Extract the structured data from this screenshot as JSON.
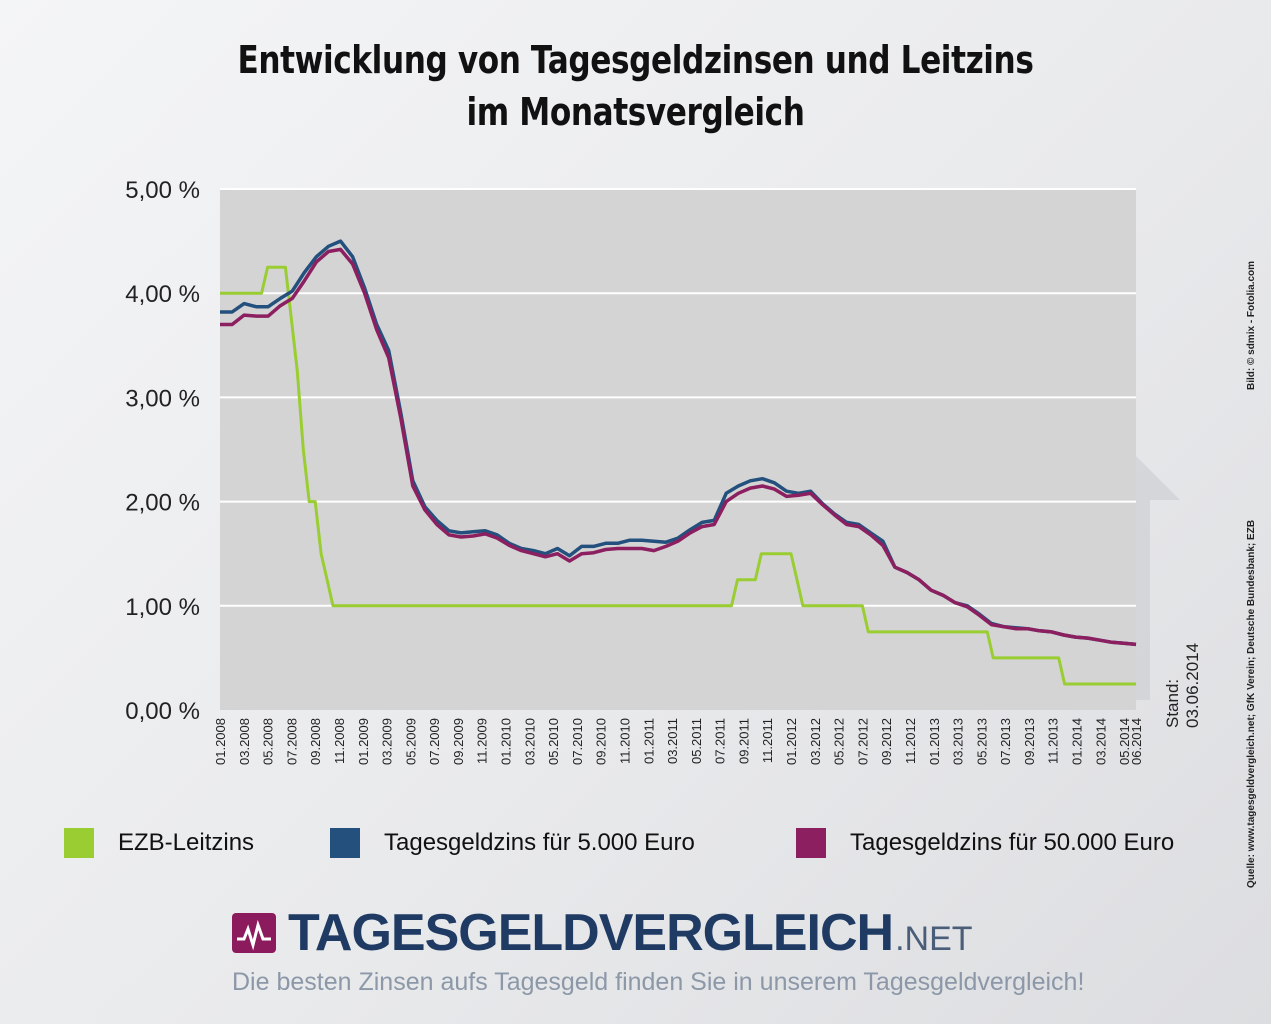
{
  "title_line1": "Entwicklung von Tagesgeldzinsen und Leitzins",
  "title_line2": "im Monatsvergleich",
  "stand": "Stand: 03.06.2014",
  "credit_image": "Bild: © sdmix - Fotolia.com",
  "credit_source": "Quelle: www.tagesgeldvergleich.net; GfK Verein; Deutsche Bundesbank; EZB",
  "logo": {
    "main": "TAGESGELDVERGLEICH",
    "ext": ".NET",
    "tagline": "Die besten Zinsen aufs Tagesgeld finden Sie in unserem Tagesgeldvergleich!"
  },
  "colors": {
    "ezb": "#9acd32",
    "t5000": "#24507e",
    "t50000": "#8c1f60",
    "plot_bg": "#d4d4d4"
  },
  "legend": [
    {
      "label": "EZB-Leitzins",
      "color": "#9acd32"
    },
    {
      "label": "Tagesgeldzins für 5.000 Euro",
      "color": "#24507e"
    },
    {
      "label": "Tagesgeldzins für 50.000 Euro",
      "color": "#8c1f60"
    }
  ],
  "chart_data": {
    "type": "line",
    "x_start": "01.2008",
    "x_end": "06.2014",
    "x_ticks": [
      "01.2008",
      "03.2008",
      "05.2008",
      "07.2008",
      "09.2008",
      "11.2008",
      "01.2009",
      "03.2009",
      "05.2009",
      "07.2009",
      "09.2009",
      "11.2009",
      "01.2010",
      "03.2010",
      "05.2010",
      "07.2010",
      "09.2010",
      "11.2010",
      "01.2011",
      "03.2011",
      "05.2011",
      "07.2011",
      "09.2011",
      "11.2011",
      "01.2012",
      "03.2012",
      "05.2012",
      "07.2012",
      "09.2012",
      "11.2012",
      "01.2013",
      "03.2013",
      "05.2013",
      "07.2013",
      "09.2013",
      "11.2013",
      "01.2014",
      "03.2014",
      "05.2014",
      "06.2014"
    ],
    "y_ticks": [
      "0,00 %",
      "1,00 %",
      "2,00 %",
      "3,00 %",
      "4,00 %",
      "5,00 %"
    ],
    "ylim": [
      0,
      5
    ],
    "grid": "horizontal",
    "legend_position": "bottom",
    "series": [
      {
        "name": "EZB-Leitzins",
        "color": "#9acd32",
        "values": [
          4,
          4,
          4,
          4,
          4,
          4,
          4,
          4,
          4.25,
          4.25,
          4.25,
          4.25,
          3.75,
          3.25,
          2.5,
          2,
          2,
          1.5,
          1.25,
          1,
          1,
          1,
          1,
          1,
          1,
          1,
          1,
          1,
          1,
          1,
          1,
          1,
          1,
          1,
          1,
          1,
          1,
          1,
          1,
          1,
          1,
          1,
          1,
          1,
          1,
          1,
          1,
          1,
          1,
          1,
          1,
          1,
          1,
          1,
          1,
          1,
          1,
          1,
          1,
          1,
          1,
          1,
          1,
          1,
          1,
          1,
          1,
          1,
          1,
          1,
          1,
          1,
          1,
          1,
          1,
          1,
          1,
          1,
          1,
          1,
          1,
          1,
          1,
          1,
          1,
          1,
          1,
          1.25,
          1.25,
          1.25,
          1.25,
          1.5,
          1.5,
          1.5,
          1.5,
          1.5,
          1.5,
          1.25,
          1,
          1,
          1,
          1,
          1,
          1,
          1,
          1,
          1,
          1,
          1,
          0.75,
          0.75,
          0.75,
          0.75,
          0.75,
          0.75,
          0.75,
          0.75,
          0.75,
          0.75,
          0.75,
          0.75,
          0.75,
          0.75,
          0.75,
          0.75,
          0.75,
          0.75,
          0.75,
          0.75,
          0.75,
          0.5,
          0.5,
          0.5,
          0.5,
          0.5,
          0.5,
          0.5,
          0.5,
          0.5,
          0.5,
          0.5,
          0.5,
          0.25,
          0.25,
          0.25,
          0.25,
          0.25,
          0.25,
          0.25,
          0.25,
          0.25,
          0.25,
          0.25,
          0.25,
          0.25
        ]
      },
      {
        "name": "Tagesgeldzins für 5.000 Euro",
        "color": "#24507e",
        "values": [
          3.82,
          3.82,
          3.9,
          3.87,
          3.87,
          3.95,
          4.02,
          4.2,
          4.35,
          4.45,
          4.5,
          4.35,
          4.05,
          3.7,
          3.45,
          2.85,
          2.2,
          1.95,
          1.82,
          1.72,
          1.7,
          1.71,
          1.72,
          1.68,
          1.6,
          1.55,
          1.53,
          1.5,
          1.55,
          1.48,
          1.57,
          1.57,
          1.6,
          1.6,
          1.63,
          1.63,
          1.62,
          1.61,
          1.65,
          1.73,
          1.8,
          1.82,
          2.08,
          2.15,
          2.2,
          2.22,
          2.18,
          2.1,
          2.08,
          2.1,
          1.98,
          1.88,
          1.8,
          1.78,
          1.7,
          1.62,
          1.37,
          1.32,
          1.25,
          1.15,
          1.1,
          1.03,
          1,
          0.92,
          0.83,
          0.8,
          0.79,
          0.78,
          0.76,
          0.75,
          0.72,
          0.7,
          0.69,
          0.67,
          0.65,
          0.64,
          0.63
        ]
      },
      {
        "name": "Tagesgeldzins für 50.000 Euro",
        "color": "#8c1f60",
        "values": [
          3.7,
          3.7,
          3.79,
          3.78,
          3.78,
          3.88,
          3.95,
          4.12,
          4.3,
          4.4,
          4.42,
          4.28,
          4.0,
          3.65,
          3.38,
          2.8,
          2.15,
          1.92,
          1.78,
          1.68,
          1.66,
          1.67,
          1.69,
          1.65,
          1.58,
          1.53,
          1.5,
          1.47,
          1.5,
          1.43,
          1.5,
          1.51,
          1.54,
          1.55,
          1.55,
          1.55,
          1.53,
          1.57,
          1.62,
          1.7,
          1.76,
          1.78,
          2.0,
          2.08,
          2.13,
          2.15,
          2.12,
          2.05,
          2.06,
          2.08,
          1.97,
          1.87,
          1.78,
          1.76,
          1.68,
          1.58,
          1.37,
          1.32,
          1.25,
          1.15,
          1.1,
          1.03,
          0.99,
          0.91,
          0.82,
          0.8,
          0.78,
          0.78,
          0.76,
          0.75,
          0.72,
          0.7,
          0.69,
          0.67,
          0.65,
          0.64,
          0.63
        ]
      }
    ]
  }
}
